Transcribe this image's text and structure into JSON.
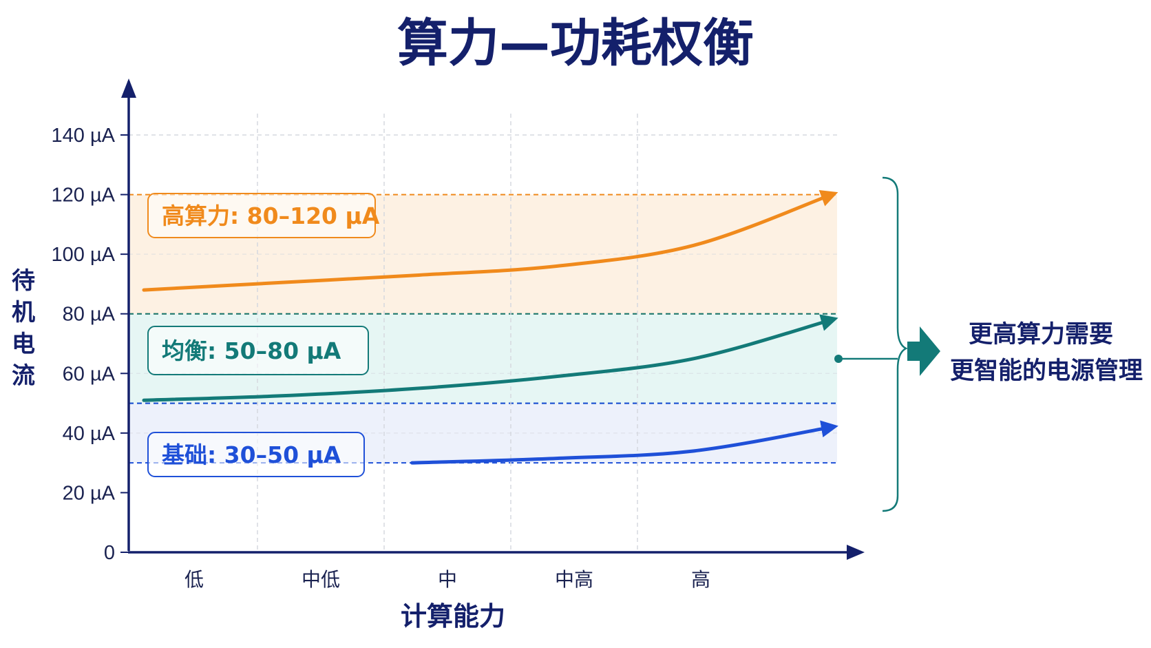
{
  "chart_data": {
    "type": "area",
    "title": "算力—功耗权衡",
    "xlabel": "计算能力",
    "ylabel": "待机电流",
    "categories": [
      "低",
      "中低",
      "中",
      "中高",
      "高"
    ],
    "ylim": [
      0,
      140
    ],
    "yticks": [
      "0",
      "20 µA",
      "40 µA",
      "60 µA",
      "80 µA",
      "100 µA",
      "120 µA",
      "140 µA"
    ],
    "ytick_values": [
      0,
      20,
      40,
      60,
      80,
      100,
      120,
      140
    ],
    "grid": true,
    "bands": [
      {
        "name": "高算力",
        "label": "高算力: 80–120 µA",
        "range": [
          80,
          120
        ],
        "color": "#f08a1c",
        "fill": "#fdf1e3",
        "curve": {
          "x": [
            0,
            1,
            2,
            3,
            4,
            5
          ],
          "y": [
            88,
            90.5,
            93,
            96,
            103,
            120
          ]
        }
      },
      {
        "name": "均衡",
        "label": "均衡: 50–80 µA",
        "range": [
          50,
          80
        ],
        "color": "#137a78",
        "fill": "#e6f6f4",
        "curve": {
          "x": [
            0,
            1,
            2,
            3,
            4,
            5
          ],
          "y": [
            51,
            52.5,
            55,
            59,
            65,
            78
          ]
        }
      },
      {
        "name": "基础",
        "label": "基础: 30–50 µA",
        "range": [
          30,
          50
        ],
        "color": "#1f50d8",
        "fill": "#edf1fb",
        "curve": {
          "x": [
            1.95,
            3,
            4,
            5
          ],
          "y": [
            30,
            31.5,
            34,
            42
          ]
        }
      }
    ],
    "conclusion": [
      "更高算力需要",
      "更智能的电源管理"
    ]
  }
}
